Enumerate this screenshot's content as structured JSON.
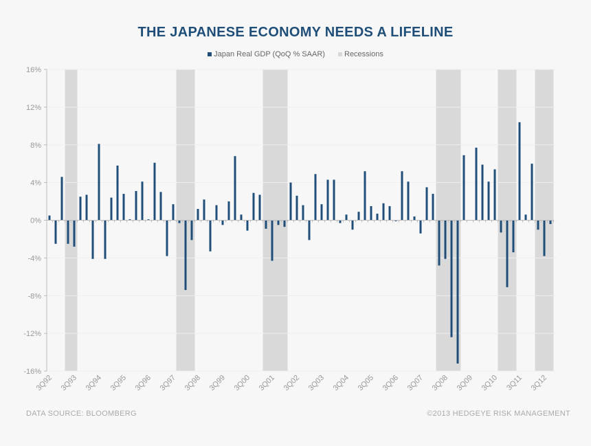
{
  "chart_data": {
    "type": "bar",
    "title": "THE JAPANESE ECONOMY NEEDS A LIFELINE",
    "series": [
      {
        "name": "Japan Real GDP (QoQ % SAAR)",
        "color": "#1f4e79",
        "values": [
          0.5,
          -2.5,
          4.6,
          -2.5,
          -2.8,
          2.5,
          2.7,
          -4.1,
          8.1,
          -4.1,
          2.4,
          5.8,
          2.8,
          0.1,
          3.1,
          4.1,
          0.1,
          6.1,
          3.0,
          -3.8,
          1.7,
          -0.3,
          -7.4,
          -2.1,
          1.2,
          2.2,
          -3.3,
          1.6,
          -0.5,
          2.0,
          6.8,
          0.6,
          -1.1,
          2.9,
          2.7,
          -0.9,
          -4.3,
          -0.5,
          -0.7,
          4.0,
          2.6,
          1.6,
          -2.1,
          4.9,
          1.7,
          4.3,
          4.3,
          -0.3,
          0.6,
          -1.0,
          0.9,
          5.2,
          1.5,
          0.7,
          1.8,
          1.5,
          -0.1,
          5.2,
          4.1,
          0.4,
          -1.4,
          3.5,
          2.8,
          -4.8,
          -4.1,
          -12.4,
          -15.2,
          6.9,
          0.0,
          7.7,
          5.9,
          4.1,
          5.4,
          -1.3,
          -7.1,
          -3.4,
          10.4,
          0.6,
          6.0,
          -1.0,
          -3.8,
          -0.4
        ]
      }
    ],
    "recessions_name": "Recessions",
    "recessions_color": "#d9d9d9",
    "recessions": [
      [
        "2Q93",
        "3Q93"
      ],
      [
        "4Q97",
        "2Q98"
      ],
      [
        "2Q01",
        "1Q02"
      ],
      [
        "2Q08",
        "1Q09"
      ],
      [
        "4Q10",
        "2Q11"
      ],
      [
        "2Q12",
        "4Q12"
      ]
    ],
    "first_quarter": "3Q92",
    "x_tick_labels": [
      "3Q92",
      "3Q93",
      "3Q94",
      "3Q95",
      "3Q96",
      "3Q97",
      "3Q98",
      "3Q99",
      "3Q00",
      "3Q01",
      "3Q02",
      "3Q03",
      "3Q04",
      "3Q05",
      "3Q06",
      "3Q07",
      "3Q08",
      "3Q09",
      "3Q10",
      "3Q11",
      "3Q12"
    ],
    "y_tick_labels": [
      "16%",
      "12%",
      "8%",
      "4%",
      "0%",
      "-4%",
      "-8%",
      "-12%",
      "-16%"
    ],
    "ylim": [
      -16,
      16
    ],
    "xlabel": "",
    "ylabel": "",
    "grid": true,
    "legend_position": "top"
  },
  "footer": {
    "source": "DATA SOURCE:  BLOOMBERG",
    "copyright": "©2013 HEDGEYE  RISK  MANAGEMENT"
  }
}
